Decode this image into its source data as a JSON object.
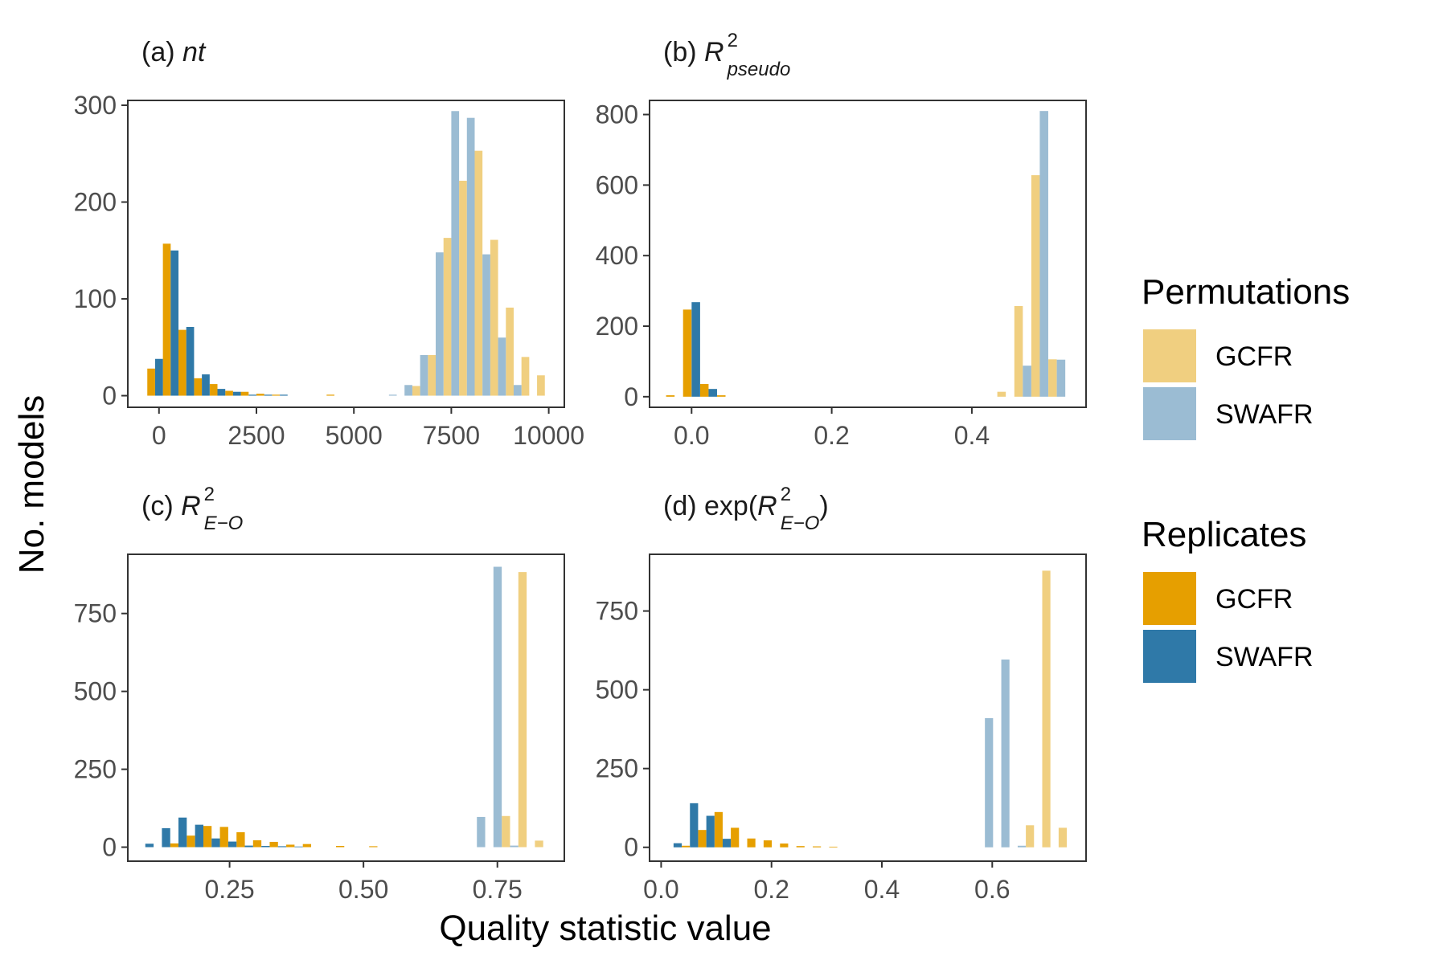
{
  "figure": {
    "xlabel": "Quality statistic value",
    "ylabel": "No. models"
  },
  "legend": {
    "permutations": {
      "title": "Permutations",
      "items": [
        {
          "label": "GCFR",
          "color": "#F0CF80"
        },
        {
          "label": "SWAFR",
          "color": "#9BBCD3"
        }
      ]
    },
    "replicates": {
      "title": "Replicates",
      "items": [
        {
          "label": "GCFR",
          "color": "#E69F00"
        },
        {
          "label": "SWAFR",
          "color": "#2F79A8"
        }
      ]
    }
  },
  "chart_data": [
    {
      "type": "bar",
      "panel": "a",
      "title": {
        "tag": "(a)",
        "stat": "nt",
        "sup": "",
        "sub": "",
        "wrap": ""
      },
      "xlim": [
        -800,
        10400
      ],
      "ylim": [
        -12,
        305
      ],
      "xticks": [
        0,
        2500,
        5000,
        7500,
        10000
      ],
      "xtick_labels": [
        "0",
        "2500",
        "5000",
        "7500",
        "10000"
      ],
      "yticks": [
        0,
        100,
        200,
        300
      ],
      "ytick_labels": [
        "0",
        "100",
        "200",
        "300"
      ],
      "bar_width": 200,
      "series": [
        {
          "name": "GCFR",
          "group": "Replicates",
          "color": "#E69F00",
          "x": [
            -200,
            200,
            600,
            1000,
            1400,
            1800,
            2200,
            2600,
            3000,
            4400
          ],
          "y": [
            28,
            157,
            68,
            18,
            12,
            5,
            4,
            2,
            1,
            1
          ]
        },
        {
          "name": "SWAFR",
          "group": "Replicates",
          "color": "#2F79A8",
          "x": [
            0,
            400,
            800,
            1200,
            1600,
            2000,
            2400,
            2800,
            3200
          ],
          "y": [
            38,
            150,
            71,
            22,
            7,
            4,
            1,
            1,
            1
          ]
        },
        {
          "name": "GCFR",
          "group": "Permutations",
          "color": "#F0CF80",
          "x": [
            6600,
            7000,
            7400,
            7800,
            8200,
            8600,
            9000,
            9400,
            9800
          ],
          "y": [
            10,
            42,
            163,
            222,
            253,
            161,
            91,
            40,
            21
          ]
        },
        {
          "name": "SWAFR",
          "group": "Permutations",
          "color": "#9BBCD3",
          "x": [
            6000,
            6400,
            6800,
            7200,
            7600,
            8000,
            8400,
            8800,
            9200
          ],
          "y": [
            1,
            11,
            42,
            148,
            294,
            287,
            146,
            60,
            11
          ]
        }
      ]
    },
    {
      "type": "bar",
      "panel": "b",
      "title": {
        "tag": "(b)",
        "stat": "R",
        "sup": "2",
        "sub": "pseudo",
        "wrap": ""
      },
      "xlim": [
        -0.06,
        0.563
      ],
      "ylim": [
        -30,
        840
      ],
      "xticks": [
        0.0,
        0.2,
        0.4
      ],
      "xtick_labels": [
        "0.0",
        "0.2",
        "0.4"
      ],
      "yticks": [
        0,
        200,
        400,
        600,
        800
      ],
      "ytick_labels": [
        "0",
        "200",
        "400",
        "600",
        "800"
      ],
      "bar_width": 0.0121,
      "series": [
        {
          "name": "GCFR",
          "group": "Replicates",
          "color": "#E69F00",
          "x": [
            -0.0303,
            -0.0061,
            0.0182,
            0.0424
          ],
          "y": [
            4,
            247,
            36,
            4
          ]
        },
        {
          "name": "SWAFR",
          "group": "Replicates",
          "color": "#2F79A8",
          "x": [
            0.0061,
            0.0303
          ],
          "y": [
            268,
            22
          ]
        },
        {
          "name": "GCFR",
          "group": "Permutations",
          "color": "#F0CF80",
          "x": [
            0.4424,
            0.4667,
            0.4909,
            0.5152
          ],
          "y": [
            14,
            257,
            628,
            106
          ]
        },
        {
          "name": "SWAFR",
          "group": "Permutations",
          "color": "#9BBCD3",
          "x": [
            0.4788,
            0.503,
            0.5273
          ],
          "y": [
            88,
            810,
            105
          ]
        }
      ]
    },
    {
      "type": "bar",
      "panel": "c",
      "title": {
        "tag": "(c)",
        "stat": "R",
        "sup": "2",
        "sub": "E−O",
        "wrap": ""
      },
      "xlim": [
        0.06,
        0.875
      ],
      "ylim": [
        -45,
        940
      ],
      "xticks": [
        0.25,
        0.5,
        0.75
      ],
      "xtick_labels": [
        "0.25",
        "0.50",
        "0.75"
      ],
      "yticks": [
        0,
        250,
        500,
        750
      ],
      "ytick_labels": [
        "0",
        "250",
        "500",
        "750"
      ],
      "bar_width": 0.0155,
      "series": [
        {
          "name": "GCFR",
          "group": "Replicates",
          "color": "#E69F00",
          "x": [
            0.1468,
            0.1778,
            0.2087,
            0.2397,
            0.2707,
            0.3016,
            0.3326,
            0.3635,
            0.3945,
            0.4564,
            0.5183
          ],
          "y": [
            12,
            37,
            68,
            65,
            48,
            22,
            17,
            8,
            10,
            4,
            3
          ]
        },
        {
          "name": "SWAFR",
          "group": "Replicates",
          "color": "#2F79A8",
          "x": [
            0.1004,
            0.1314,
            0.1623,
            0.1933,
            0.2242,
            0.2552,
            0.2861,
            0.3171,
            0.348,
            0.379
          ],
          "y": [
            11,
            61,
            95,
            72,
            28,
            18,
            5,
            4,
            3,
            2
          ]
        },
        {
          "name": "GCFR",
          "group": "Permutations",
          "color": "#F0CF80",
          "x": [
            0.7659,
            0.7969,
            0.8278
          ],
          "y": [
            100,
            883,
            21
          ]
        },
        {
          "name": "SWAFR",
          "group": "Permutations",
          "color": "#9BBCD3",
          "x": [
            0.7195,
            0.7504,
            0.7814
          ],
          "y": [
            97,
            900,
            5
          ]
        }
      ]
    },
    {
      "type": "bar",
      "panel": "d",
      "title": {
        "tag": "(d)",
        "stat": "R",
        "sup": "2",
        "sub": "E−O",
        "wrap": "exp"
      },
      "xlim": [
        -0.021,
        0.77
      ],
      "ylim": [
        -44,
        930
      ],
      "xticks": [
        0.0,
        0.2,
        0.4,
        0.6
      ],
      "xtick_labels": [
        "0.0",
        "0.2",
        "0.4",
        "0.6"
      ],
      "yticks": [
        0,
        250,
        500,
        750
      ],
      "ytick_labels": [
        "0",
        "250",
        "500",
        "750"
      ],
      "bar_width": 0.0148,
      "series": [
        {
          "name": "GCFR",
          "group": "Replicates",
          "color": "#E69F00",
          "x": [
            0.0447,
            0.0744,
            0.1041,
            0.1337,
            0.1634,
            0.1931,
            0.2228,
            0.2525,
            0.2822,
            0.3119
          ],
          "y": [
            5,
            55,
            112,
            62,
            28,
            22,
            12,
            4,
            3,
            2
          ]
        },
        {
          "name": "SWAFR",
          "group": "Replicates",
          "color": "#2F79A8",
          "x": [
            0.0299,
            0.0596,
            0.0893,
            0.1189
          ],
          "y": [
            13,
            140,
            100,
            27
          ]
        },
        {
          "name": "GCFR",
          "group": "Permutations",
          "color": "#F0CF80",
          "x": [
            0.6683,
            0.698,
            0.7277
          ],
          "y": [
            70,
            878,
            62
          ]
        },
        {
          "name": "SWAFR",
          "group": "Permutations",
          "color": "#9BBCD3",
          "x": [
            0.5941,
            0.6238,
            0.6535
          ],
          "y": [
            410,
            596,
            5
          ]
        }
      ]
    }
  ]
}
